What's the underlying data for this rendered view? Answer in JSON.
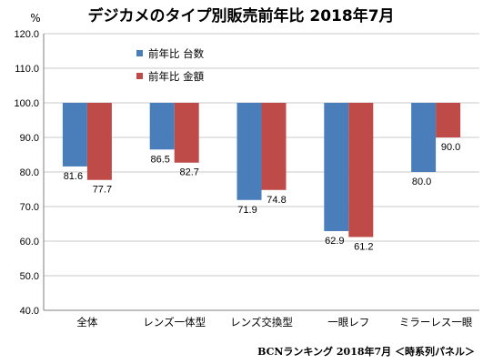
{
  "chart_data": {
    "type": "bar",
    "title": "デジカメのタイプ別販売前年比 2018年7月",
    "unit_label": "%",
    "categories": [
      "全体",
      "レンズ一体型",
      "レンズ交換型",
      "一眼レフ",
      "ミラーレス一眼"
    ],
    "series": [
      {
        "name": "前年比 台数",
        "color": "#4a7ebb",
        "values": [
          81.6,
          86.5,
          71.9,
          62.9,
          80.0
        ],
        "labels": [
          "81.6",
          "86.5",
          "71.9",
          "62.9",
          "80.0"
        ]
      },
      {
        "name": "前年比 金額",
        "color": "#be4b48",
        "values": [
          77.7,
          82.7,
          74.8,
          61.2,
          90.0
        ],
        "labels": [
          "77.7",
          "82.7",
          "74.8",
          "61.2",
          "90.0"
        ]
      }
    ],
    "baseline": 100,
    "ylim": [
      40,
      120
    ],
    "yticks": [
      "120.0",
      "110.0",
      "100.0",
      "90.0",
      "80.0",
      "70.0",
      "60.0",
      "50.0",
      "40.0"
    ],
    "grid": true,
    "legend_position": "top-left"
  },
  "footer": "BCNランキング 2018年7月 ＜時系列パネル＞"
}
